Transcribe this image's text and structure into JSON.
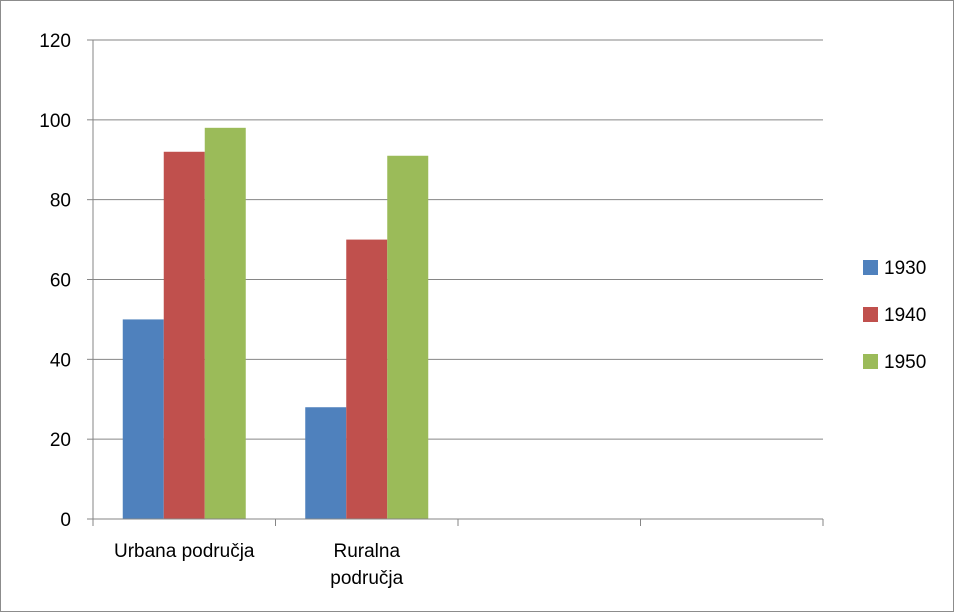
{
  "chart_data": {
    "type": "bar",
    "categories": [
      [
        "Urbana područja"
      ],
      [
        "Ruralna",
        "područja"
      ],
      [
        ""
      ],
      [
        ""
      ]
    ],
    "series": [
      {
        "name": "1930",
        "color": "#4f81bd",
        "values": [
          50,
          28,
          null,
          null
        ]
      },
      {
        "name": "1940",
        "color": "#c0504d",
        "values": [
          92,
          70,
          null,
          null
        ]
      },
      {
        "name": "1950",
        "color": "#9bbb59",
        "values": [
          98,
          91,
          null,
          null
        ]
      }
    ],
    "ylim": [
      0,
      120
    ],
    "yticks": [
      0,
      20,
      40,
      60,
      80,
      100,
      120
    ],
    "grid": true,
    "legend_position": "right",
    "title": "",
    "xlabel": "",
    "ylabel": ""
  }
}
